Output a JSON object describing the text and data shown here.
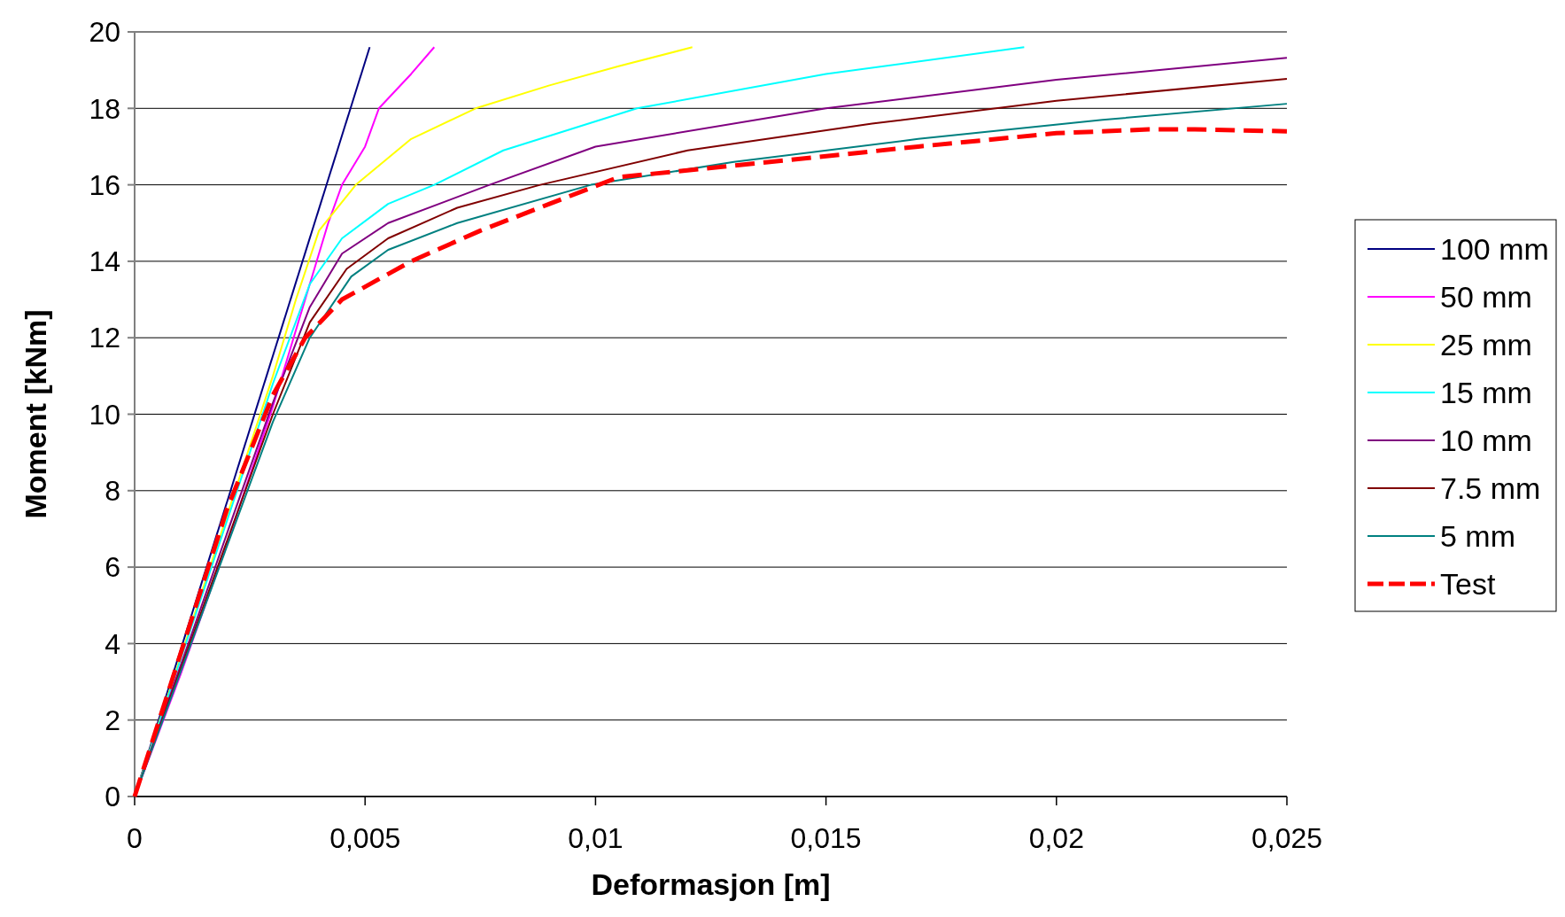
{
  "chart_data": {
    "type": "line",
    "xlabel": "Deformasjon [m]",
    "ylabel": "Moment [kNm]",
    "xlim": [
      0,
      0.025
    ],
    "ylim": [
      0,
      20
    ],
    "xticks": [
      0,
      {
        "value": 0.005,
        "label": "0,005"
      },
      {
        "value": 0.01,
        "label": "0,01"
      },
      {
        "value": 0.015,
        "label": "0,015"
      },
      {
        "value": 0.02,
        "label": "0,02"
      },
      {
        "value": 0.025,
        "label": "0,025"
      }
    ],
    "yticks": [
      0,
      2,
      4,
      6,
      8,
      10,
      12,
      14,
      16,
      18,
      20
    ],
    "grid": "y",
    "legend": "right",
    "series": [
      {
        "name": "100 mm",
        "color": "#000080",
        "x": [
          0,
          0.0051
        ],
        "values": [
          0,
          19.6
        ]
      },
      {
        "name": "50 mm",
        "color": "#ff00ff",
        "x": [
          0,
          0.001,
          0.002,
          0.003,
          0.0037,
          0.0042,
          0.0045,
          0.005,
          0.0053,
          0.006,
          0.0065
        ],
        "values": [
          0,
          3.2,
          6.6,
          10.2,
          13,
          15,
          16,
          17,
          18,
          18.9,
          19.6
        ]
      },
      {
        "name": "25 mm",
        "color": "#ffff00",
        "x": [
          0,
          0.003,
          0.0035,
          0.004,
          0.0048,
          0.006,
          0.0074,
          0.009,
          0.0105,
          0.0121
        ],
        "values": [
          0,
          11,
          13,
          14.8,
          16,
          17.2,
          18,
          18.6,
          19.1,
          19.6
        ]
      },
      {
        "name": "15 mm",
        "color": "#00ffff",
        "x": [
          0,
          0.003,
          0.0038,
          0.0045,
          0.0055,
          0.0065,
          0.008,
          0.0109,
          0.015,
          0.0193
        ],
        "values": [
          0,
          10.8,
          13.4,
          14.6,
          15.5,
          16,
          16.9,
          18,
          18.9,
          19.6
        ]
      },
      {
        "name": "10 mm",
        "color": "#800080",
        "x": [
          0,
          0.003,
          0.0038,
          0.0045,
          0.0055,
          0.0077,
          0.01,
          0.015,
          0.02,
          0.025
        ],
        "values": [
          0,
          10.3,
          12.8,
          14.2,
          15,
          16,
          17,
          18,
          18.75,
          19.32
        ]
      },
      {
        "name": "7.5 mm",
        "color": "#800000",
        "x": [
          0,
          0.003,
          0.0038,
          0.0046,
          0.0055,
          0.007,
          0.0088,
          0.012,
          0.016,
          0.02,
          0.025
        ],
        "values": [
          0,
          10,
          12.4,
          13.8,
          14.6,
          15.4,
          16,
          16.9,
          17.6,
          18.2,
          18.77
        ]
      },
      {
        "name": "5 mm",
        "color": "#008080",
        "x": [
          0,
          0.003,
          0.0038,
          0.0047,
          0.0055,
          0.007,
          0.0099,
          0.013,
          0.017,
          0.021,
          0.025
        ],
        "values": [
          0,
          9.8,
          12,
          13.6,
          14.3,
          15,
          16,
          16.6,
          17.2,
          17.7,
          18.12
        ]
      },
      {
        "name": "Test",
        "color": "#ff0000",
        "line_style": "dashed",
        "x": [
          0,
          0.002,
          0.003,
          0.0037,
          0.0045,
          0.006,
          0.0075,
          0.009,
          0.0105,
          0.013,
          0.017,
          0.02,
          0.022,
          0.023,
          0.025
        ],
        "values": [
          0,
          7.5,
          10.5,
          12,
          13,
          14,
          14.8,
          15.5,
          16.2,
          16.5,
          17,
          17.35,
          17.45,
          17.45,
          17.4
        ]
      }
    ]
  }
}
